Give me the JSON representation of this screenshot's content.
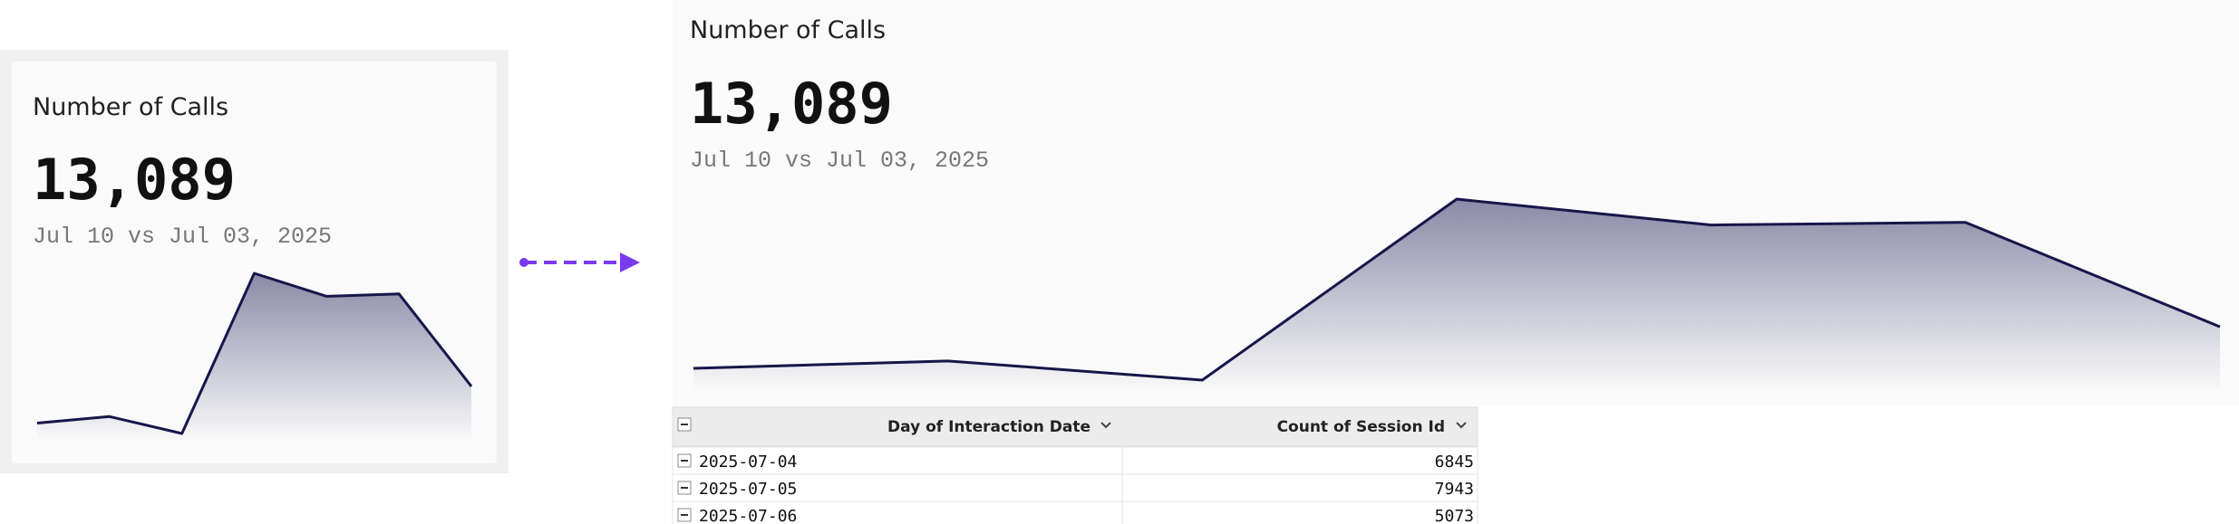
{
  "chart_data": {
    "type": "area",
    "title": "Number of Calls",
    "headline": "13,089",
    "subtitle": "Jul 10 vs Jul 03, 2025",
    "values": [
      6845,
      7943,
      5073,
      32300,
      28400,
      28800,
      13089
    ],
    "color": "#16164a"
  },
  "table": {
    "columns": [
      "Day of Interaction Date",
      "Count of Session Id"
    ],
    "rows": [
      [
        "2025-07-04"
      ],
      [
        "2025-07-05"
      ],
      [
        "2025-07-06"
      ]
    ]
  }
}
